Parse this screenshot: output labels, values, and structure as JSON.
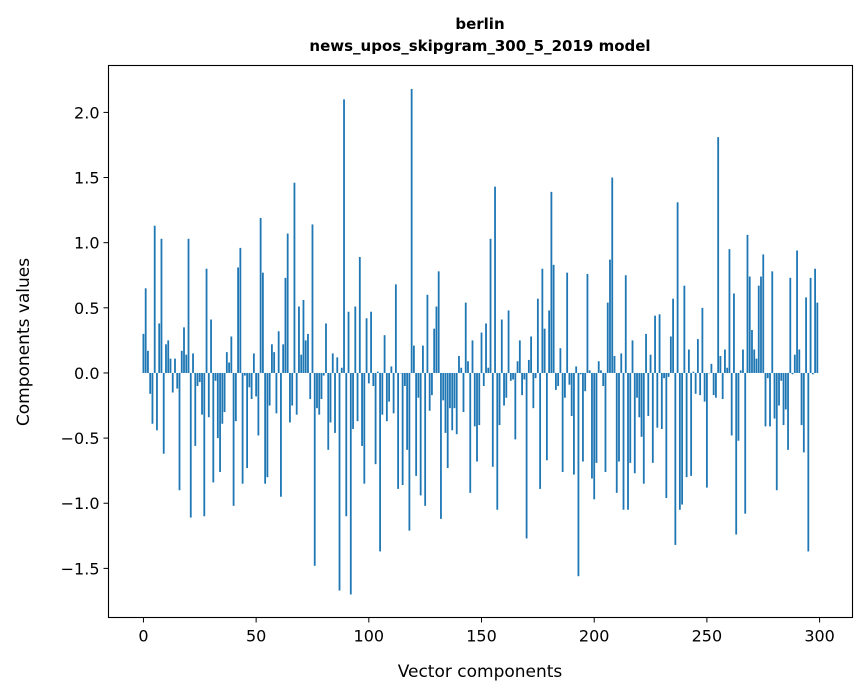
{
  "chart_data": {
    "type": "bar",
    "title_line1": "berlin",
    "title_line2": "news_upos_skipgram_300_5_2019 model",
    "xlabel": "Vector components",
    "ylabel": "Components values",
    "xlim": [
      -15.5,
      314.6
    ],
    "ylim": [
      -1.877,
      2.36
    ],
    "xticks": [
      0,
      50,
      100,
      150,
      200,
      250,
      300
    ],
    "xtick_labels": [
      "0",
      "50",
      "100",
      "150",
      "200",
      "250",
      "300"
    ],
    "yticks": [
      -1.5,
      -1.0,
      -0.5,
      0.0,
      0.5,
      1.0,
      1.5,
      2.0
    ],
    "ytick_labels": [
      "−1.5",
      "−1.0",
      "−0.5",
      "0.0",
      "0.5",
      "1.0",
      "1.5",
      "2.0"
    ],
    "grid": false,
    "bar_color": "#1f77b4",
    "x": "0..299",
    "values": [
      0.3,
      0.65,
      0.17,
      -0.16,
      -0.39,
      1.13,
      -0.44,
      0.38,
      1.03,
      -0.62,
      0.22,
      0.25,
      0.11,
      -0.15,
      0.11,
      -0.12,
      -0.9,
      0.17,
      0.35,
      0.14,
      1.03,
      -1.11,
      0.15,
      -0.56,
      -0.1,
      -0.07,
      -0.32,
      -1.1,
      0.8,
      -0.34,
      0.41,
      -0.84,
      -0.06,
      -0.5,
      -0.76,
      -0.39,
      -0.3,
      0.16,
      0.08,
      0.28,
      -1.02,
      -0.37,
      0.81,
      0.96,
      -0.85,
      -0.02,
      -0.73,
      -0.11,
      -0.2,
      0.15,
      -0.18,
      -0.48,
      1.19,
      0.77,
      -0.85,
      -0.8,
      -0.25,
      0.22,
      0.16,
      -0.31,
      0.32,
      -0.95,
      0.22,
      0.73,
      1.07,
      -0.38,
      -0.25,
      1.46,
      -0.32,
      0.51,
      0.14,
      0.56,
      0.25,
      0.3,
      -0.2,
      1.14,
      -1.48,
      -0.27,
      -0.32,
      -0.2,
      -0.02,
      0.38,
      -0.59,
      -0.38,
      0.15,
      -0.46,
      0.12,
      -1.67,
      0.04,
      2.1,
      -1.1,
      0.47,
      -1.7,
      -0.43,
      0.51,
      -0.37,
      0.89,
      -0.56,
      -0.85,
      0.42,
      -0.08,
      0.47,
      -0.1,
      -0.7,
      0.01,
      -1.37,
      -0.32,
      0.29,
      -0.37,
      -0.22,
      0.05,
      -0.31,
      0.68,
      -0.89,
      0.0,
      -0.86,
      -0.1,
      -0.59,
      -1.21,
      2.18,
      0.21,
      -0.79,
      -0.19,
      -0.94,
      0.21,
      -1.02,
      0.6,
      -0.29,
      -0.17,
      0.34,
      0.51,
      0.78,
      -1.12,
      -0.21,
      -0.46,
      -0.73,
      -0.27,
      -0.44,
      -0.27,
      -0.47,
      0.13,
      0.04,
      -0.3,
      0.54,
      0.09,
      -0.92,
      0.25,
      -0.41,
      -0.68,
      -0.4,
      0.31,
      -0.1,
      0.38,
      0.04,
      1.03,
      -0.72,
      1.43,
      -1.05,
      -0.4,
      0.41,
      -0.25,
      -0.19,
      0.48,
      -0.06,
      -0.05,
      -0.51,
      0.09,
      0.25,
      -0.17,
      -0.05,
      -1.27,
      0.1,
      0.28,
      -0.27,
      -0.04,
      0.57,
      -0.89,
      0.8,
      0.34,
      -0.67,
      0.48,
      1.39,
      0.83,
      -0.13,
      -0.1,
      0.19,
      -0.76,
      -0.19,
      0.77,
      -0.09,
      -0.33,
      -0.78,
      0.05,
      -1.56,
      -0.01,
      -0.68,
      -0.14,
      0.76,
      0.02,
      -0.81,
      -0.97,
      -0.69,
      0.09,
      0.02,
      -0.1,
      -0.76,
      0.54,
      0.87,
      1.5,
      0.13,
      -0.92,
      -0.68,
      0.15,
      -1.05,
      0.75,
      -1.05,
      -0.69,
      0.25,
      -0.77,
      -0.19,
      -0.34,
      -0.49,
      -0.85,
      0.3,
      -0.33,
      0.14,
      -0.69,
      0.44,
      -0.42,
      0.45,
      -0.43,
      -0.04,
      -0.96,
      -0.03,
      0.28,
      0.57,
      -1.32,
      1.31,
      -1.05,
      -1.01,
      0.67,
      -0.8,
      0.18,
      -0.79,
      0.01,
      -0.16,
      0.26,
      -0.17,
      0.5,
      -0.22,
      -0.88,
      0.0,
      0.07,
      -0.17,
      -0.19,
      1.81,
      0.13,
      -0.2,
      0.18,
      0.04,
      0.95,
      -0.48,
      0.61,
      -1.24,
      -0.52,
      0.02,
      0.18,
      -1.08,
      1.06,
      0.74,
      0.33,
      0.18,
      0.11,
      0.67,
      0.74,
      0.91,
      -0.41,
      -0.04,
      -0.41,
      0.78,
      -0.35,
      -0.9,
      -0.25,
      -0.06,
      -0.4,
      -0.28,
      -0.59,
      0.73,
      -0.01,
      0.14,
      0.94,
      0.18,
      -0.4,
      -0.61,
      0.58,
      -1.37,
      0.73,
      -0.01,
      0.8,
      0.54
    ]
  }
}
